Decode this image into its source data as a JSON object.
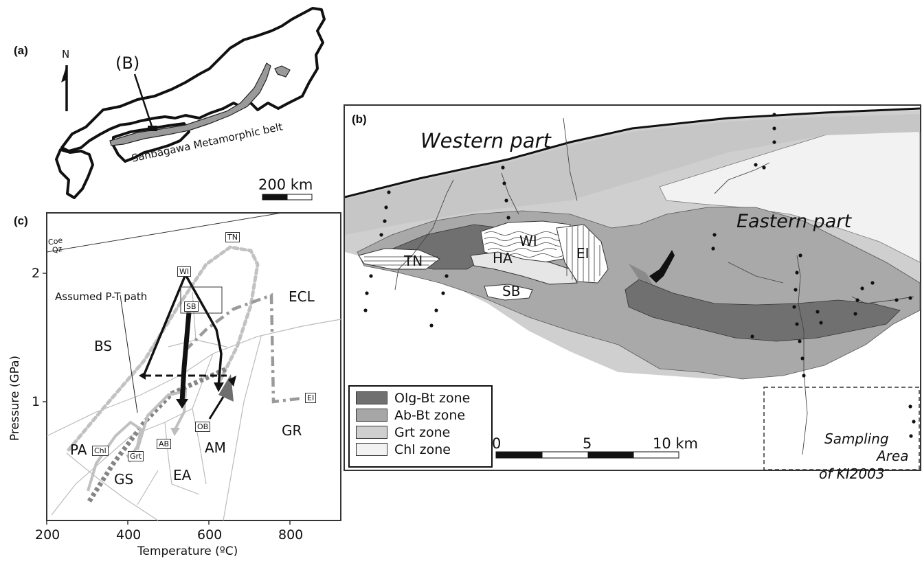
{
  "panel_a": {
    "label": "(a)",
    "north": "N",
    "inset_marker": "(B)",
    "belt_label": "Sanbagawa Metamorphic belt",
    "scale_label": "200 km"
  },
  "panel_b": {
    "label": "(b)",
    "western_part": "Western part",
    "eastern_part": "Eastern part",
    "units": [
      "TN",
      "WI",
      "HA",
      "EI",
      "SB"
    ],
    "legend": [
      {
        "label": "Olg-Bt zone",
        "color": "#707070"
      },
      {
        "label": "Ab-Bt zone",
        "color": "#a6a6a6"
      },
      {
        "label": "Grt zone",
        "color": "#cfcfcf"
      },
      {
        "label": "Chl zone",
        "color": "#f2f2f2"
      }
    ],
    "scale_ticks": [
      "0",
      "5",
      "10 km"
    ],
    "sampling_area": [
      "Sampling",
      "Area",
      "of KI2003"
    ]
  },
  "panel_c": {
    "label": "(c)",
    "x_axis_title": "Temperature (ºC)",
    "y_axis_title": "Pressure (GPa)",
    "x_ticks": [
      "200",
      "400",
      "600",
      "800"
    ],
    "y_ticks": [
      "1",
      "2"
    ],
    "facies": [
      "BS",
      "ECL",
      "GR",
      "AM",
      "EA",
      "GS",
      "PA"
    ],
    "reaction_labels": [
      "Coe",
      "Qz"
    ],
    "assumed_path_label": "Assumed P-T path",
    "path_boxes": [
      "TN",
      "WI",
      "SB",
      "EI",
      "OB",
      "AB",
      "Grt",
      "Chl"
    ]
  }
}
